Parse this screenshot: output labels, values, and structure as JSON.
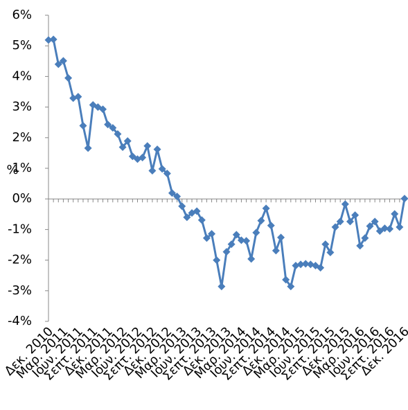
{
  "chart_data": {
    "type": "line",
    "y_label": "%",
    "categories": [
      "Δεκ. 2010",
      null,
      null,
      "Μαρ. 2011",
      null,
      null,
      "Ιουν. 2011",
      null,
      null,
      "Σεπτ. 2011",
      null,
      null,
      "Δεκ. 2011",
      null,
      null,
      "Μαρ. 2012",
      null,
      null,
      "Ιουν. 2012",
      null,
      null,
      "Σεπτ. 2012",
      null,
      null,
      "Δεκ. 2012",
      null,
      null,
      "Μαρ. 2013",
      null,
      null,
      "Ιουν. 2013",
      null,
      null,
      "Σεπτ. 2013",
      null,
      null,
      "Δεκ. 2013",
      null,
      null,
      "Μαρ. 2014",
      null,
      null,
      "Ιουν. 2014",
      null,
      null,
      "Σεπτ. 2014",
      null,
      null,
      "Δεκ. 2014",
      null,
      null,
      "Μαρ. 2015",
      null,
      null,
      "Ιουν. 2015",
      null,
      null,
      "Σεπτ. 2015",
      null,
      null,
      "Δεκ. 2015",
      null,
      null,
      "Μαρ. 2016",
      null,
      null,
      "Ιουν. 2016",
      null,
      null,
      "Σεπτ. 2016",
      null,
      null,
      "Δεκ. 2016"
    ],
    "series": [
      {
        "color": "#4a7ebb",
        "values": [
          5.19,
          5.21,
          4.4,
          4.51,
          3.95,
          3.29,
          3.34,
          2.39,
          1.66,
          3.07,
          3.0,
          2.93,
          2.43,
          2.32,
          2.12,
          1.69,
          1.89,
          1.39,
          1.3,
          1.35,
          1.73,
          0.92,
          1.62,
          0.98,
          0.83,
          0.19,
          0.08,
          -0.24,
          -0.6,
          -0.46,
          -0.4,
          -0.69,
          -1.28,
          -1.14,
          -2.0,
          -2.86,
          -1.73,
          -1.48,
          -1.17,
          -1.35,
          -1.37,
          -1.96,
          -1.1,
          -0.71,
          -0.31,
          -0.87,
          -1.69,
          -1.26,
          -2.64,
          -2.86,
          -2.18,
          -2.14,
          -2.12,
          -2.14,
          -2.18,
          -2.25,
          -1.48,
          -1.75,
          -0.92,
          -0.74,
          -0.17,
          -0.74,
          -0.53,
          -1.53,
          -1.28,
          -0.89,
          -0.74,
          -1.05,
          -0.96,
          -0.98,
          -0.49,
          -0.92,
          0.01
        ]
      }
    ],
    "ylim": [
      -4,
      6
    ],
    "yticks": [
      {
        "value": -4,
        "label": "-4%"
      },
      {
        "value": -3,
        "label": "-3%"
      },
      {
        "value": -2,
        "label": "-2%"
      },
      {
        "value": -1,
        "label": "-1%"
      },
      {
        "value": 0,
        "label": "0%"
      },
      {
        "value": 1,
        "label": "1%"
      },
      {
        "value": 2,
        "label": "2%"
      },
      {
        "value": 3,
        "label": "3%"
      },
      {
        "value": 4,
        "label": "4%"
      },
      {
        "value": 5,
        "label": "5%"
      },
      {
        "value": 6,
        "label": "6%"
      }
    ]
  }
}
